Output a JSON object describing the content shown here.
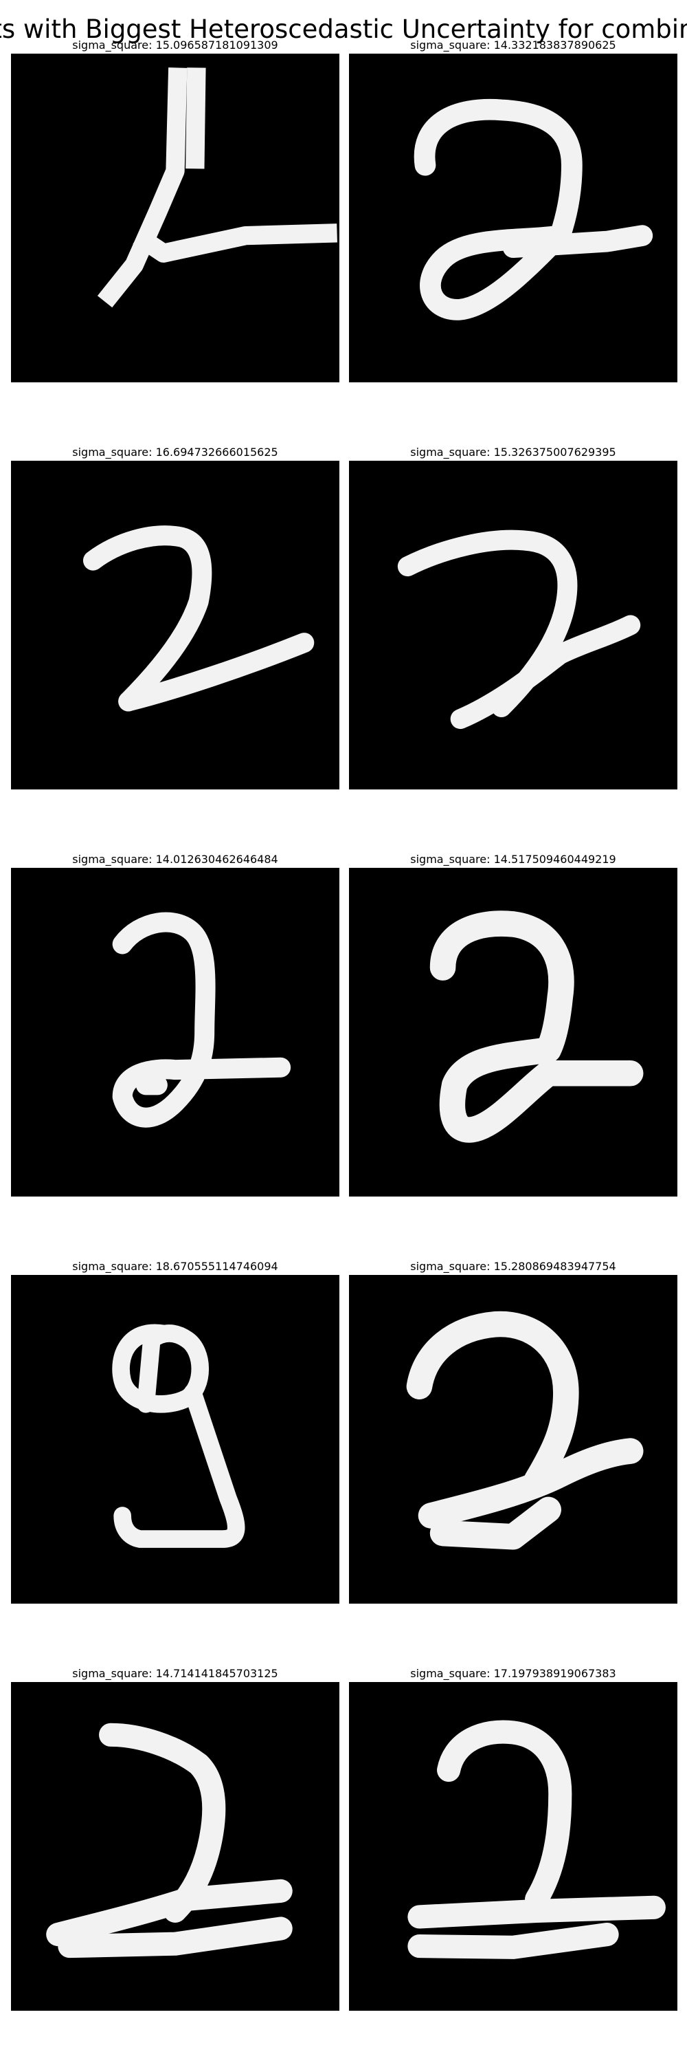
{
  "figure": {
    "title": "ots with Biggest Heteroscedastic Uncertainty for combine"
  },
  "panels": [
    {
      "title": "sigma_square: 15.096587181091309",
      "digit": "7-or-2 angular stroke"
    },
    {
      "title": "sigma_square: 14.332183837890625",
      "digit": "2 with loop"
    },
    {
      "title": "sigma_square: 16.694732666015625",
      "digit": "2"
    },
    {
      "title": "sigma_square: 15.326375007629395",
      "digit": "2"
    },
    {
      "title": "sigma_square: 14.012630462646484",
      "digit": "2 with loop"
    },
    {
      "title": "sigma_square: 14.517509460449219",
      "digit": "2 with loop"
    },
    {
      "title": "sigma_square: 18.670555114746094",
      "digit": "9"
    },
    {
      "title": "sigma_square: 15.280869483947754",
      "digit": "2"
    },
    {
      "title": "sigma_square: 14.714141845703125",
      "digit": "2"
    },
    {
      "title": "sigma_square: 17.197938919067383",
      "digit": "2"
    }
  ]
}
